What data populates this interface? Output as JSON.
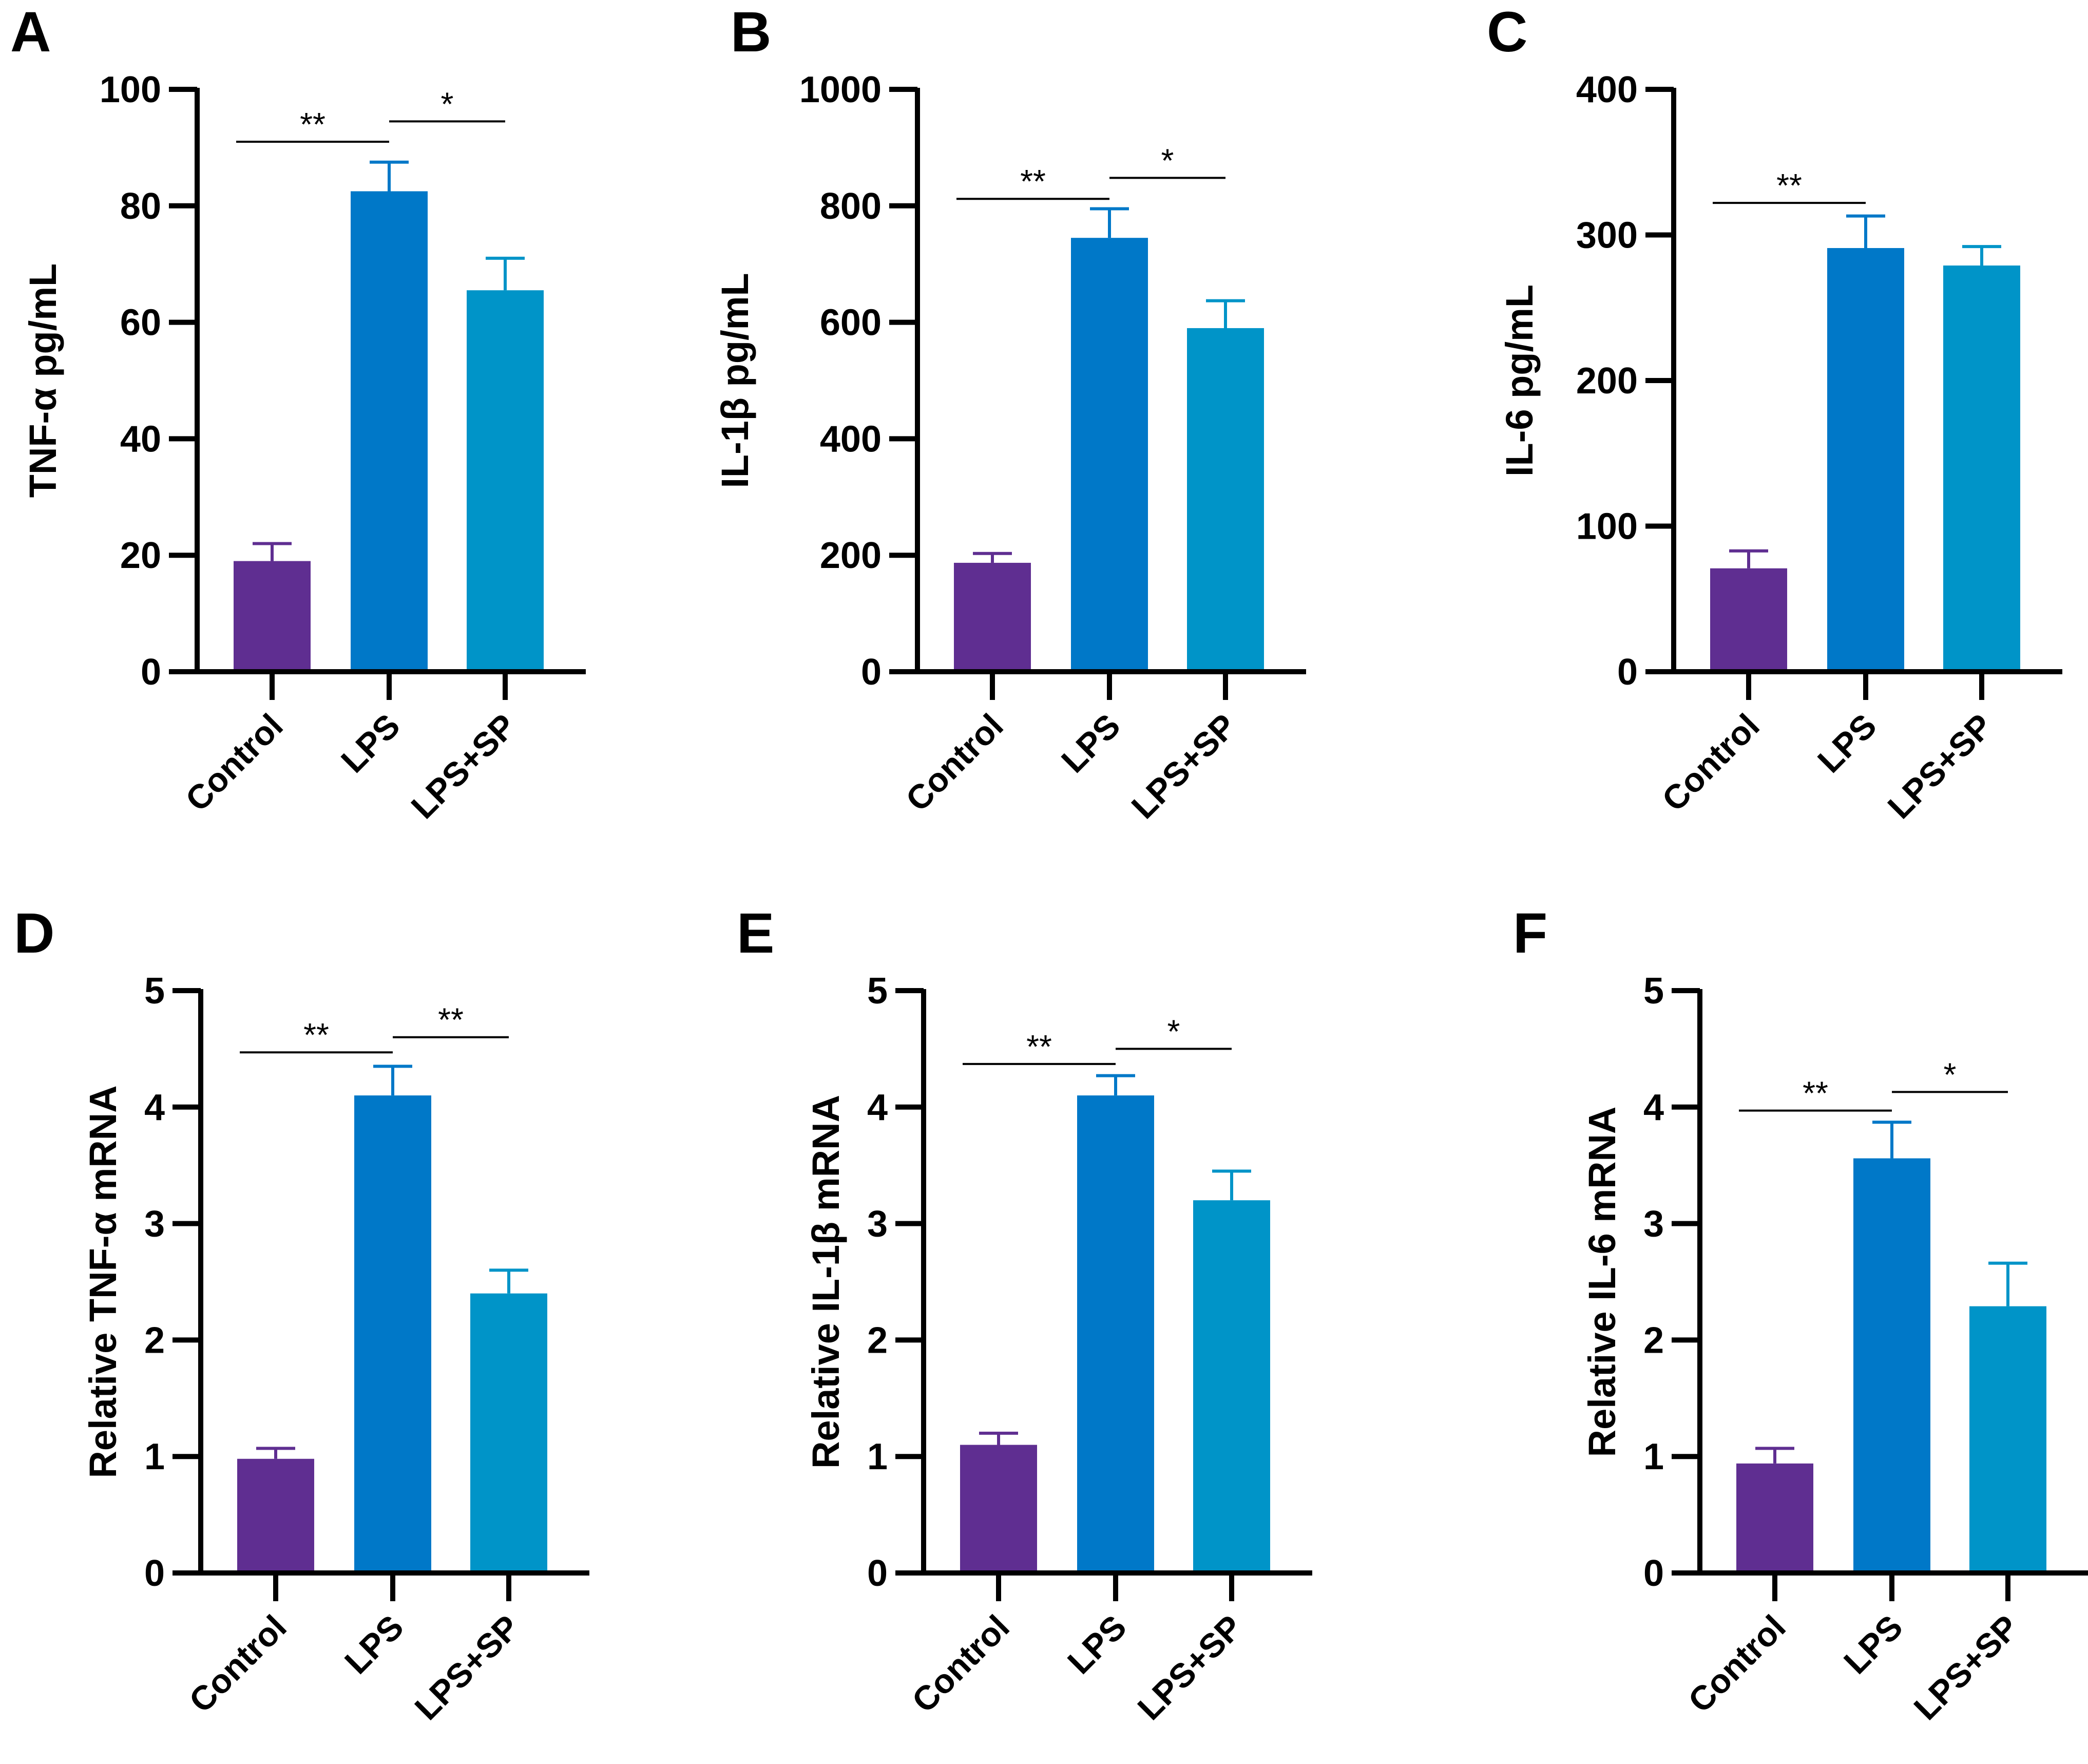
{
  "colors": {
    "Control": "#5f2e91",
    "LPS": "#0078c8",
    "LPS+SP": "#0094c8",
    "axis": "#000000"
  },
  "chart_data": [
    {
      "panel": "A",
      "type": "bar",
      "categories": [
        "Control",
        "LPS",
        "LPS+SP"
      ],
      "values": [
        19,
        82.5,
        65.5
      ],
      "error_upper": [
        22,
        87.5,
        71
      ],
      "ylabel": "TNF-α pg/mL",
      "ylim": [
        0,
        100
      ],
      "yticks": [
        "0",
        "20",
        "40",
        "60",
        "80",
        "100"
      ],
      "significance": [
        {
          "from": 0,
          "to": 1,
          "label": "**",
          "y": 91
        },
        {
          "from": 1,
          "to": 2,
          "label": "*",
          "y": 94.5
        }
      ]
    },
    {
      "panel": "B",
      "type": "bar",
      "categories": [
        "Control",
        "LPS",
        "LPS+SP"
      ],
      "values": [
        187,
        745,
        590
      ],
      "error_upper": [
        203,
        795,
        637
      ],
      "ylabel": "IL-1β pg/mL",
      "ylim": [
        0,
        1000
      ],
      "yticks": [
        "0",
        "200",
        "400",
        "600",
        "800",
        "1000"
      ],
      "significance": [
        {
          "from": 0,
          "to": 1,
          "label": "**",
          "y": 812
        },
        {
          "from": 1,
          "to": 2,
          "label": "*",
          "y": 848
        }
      ]
    },
    {
      "panel": "C",
      "type": "bar",
      "categories": [
        "Control",
        "LPS",
        "LPS+SP"
      ],
      "values": [
        71,
        291,
        279
      ],
      "error_upper": [
        83,
        313,
        292
      ],
      "ylabel": "IL-6 pg/mL",
      "ylim": [
        0,
        400
      ],
      "yticks": [
        "0",
        "100",
        "200",
        "300",
        "400"
      ],
      "significance": [
        {
          "from": 0,
          "to": 1,
          "label": "**",
          "y": 322
        }
      ]
    },
    {
      "panel": "D",
      "type": "bar",
      "categories": [
        "Control",
        "LPS",
        "LPS+SP"
      ],
      "values": [
        0.98,
        4.1,
        2.4
      ],
      "error_upper": [
        1.07,
        4.35,
        2.6
      ],
      "ylabel": "Relative TNF-α mRNA",
      "ylim": [
        0,
        5
      ],
      "yticks": [
        "0",
        "1",
        "2",
        "3",
        "4",
        "5"
      ],
      "significance": [
        {
          "from": 0,
          "to": 1,
          "label": "**",
          "y": 4.47
        },
        {
          "from": 1,
          "to": 2,
          "label": "**",
          "y": 4.6
        }
      ]
    },
    {
      "panel": "E",
      "type": "bar",
      "categories": [
        "Control",
        "LPS",
        "LPS+SP"
      ],
      "values": [
        1.1,
        4.1,
        3.2
      ],
      "error_upper": [
        1.2,
        4.27,
        3.45
      ],
      "ylabel": "Relative IL-1β mRNA",
      "ylim": [
        0,
        5
      ],
      "yticks": [
        "0",
        "1",
        "2",
        "3",
        "4",
        "5"
      ],
      "significance": [
        {
          "from": 0,
          "to": 1,
          "label": "**",
          "y": 4.37
        },
        {
          "from": 1,
          "to": 2,
          "label": "*",
          "y": 4.5
        }
      ]
    },
    {
      "panel": "F",
      "type": "bar",
      "categories": [
        "Control",
        "LPS",
        "LPS+SP"
      ],
      "values": [
        0.94,
        3.56,
        2.29
      ],
      "error_upper": [
        1.07,
        3.87,
        2.66
      ],
      "ylabel": "Relative IL-6 mRNA",
      "ylim": [
        0,
        5
      ],
      "yticks": [
        "0",
        "1",
        "2",
        "3",
        "4",
        "5"
      ],
      "significance": [
        {
          "from": 0,
          "to": 1,
          "label": "**",
          "y": 3.97
        },
        {
          "from": 1,
          "to": 2,
          "label": "*",
          "y": 4.13
        }
      ]
    }
  ]
}
